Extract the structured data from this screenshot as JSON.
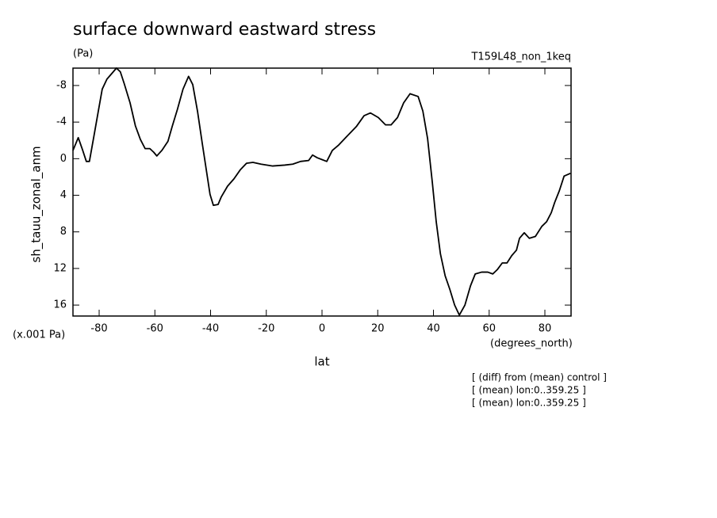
{
  "chart_data": {
    "type": "line",
    "title": "surface downward eastward stress",
    "subtitle": "(Pa)",
    "run_label": "T159L48_non_1keq",
    "y_axis_label": "sh_tauu_zonal_anm",
    "x_axis_label": "lat",
    "y_unit_label": "(x.001 Pa)",
    "x_unit_label": "(degrees_north)",
    "annotations": [
      "[ (diff) from (mean) control ]",
      "[ (mean) lon:0..359.25 ]",
      "[ (mean) lon:0..359.25 ]"
    ],
    "xlim": [
      -89.4,
      89.4
    ],
    "ylim": [
      17.2,
      -9.9
    ],
    "xticks": [
      -80,
      -60,
      -40,
      -20,
      0,
      20,
      40,
      60,
      80
    ],
    "yticks": [
      -8,
      -4,
      0,
      4,
      8,
      12,
      16
    ],
    "color": "#000000",
    "x": [
      -89.4,
      -87.5,
      -86,
      -84.6,
      -83.5,
      -81.8,
      -80.3,
      -78.9,
      -77.2,
      -75.2,
      -73.8,
      -72.4,
      -71,
      -68.9,
      -67,
      -65.2,
      -63.5,
      -61.8,
      -60.4,
      -59.3,
      -57.5,
      -55.3,
      -53.8,
      -51.9,
      -49.9,
      -47.9,
      -46.4,
      -44.7,
      -43,
      -41.3,
      -40.2,
      -39,
      -37.3,
      -36.2,
      -33.9,
      -31.6,
      -29.3,
      -27.1,
      -24.8,
      -21.9,
      -17.7,
      -13.4,
      -10.5,
      -7.7,
      -4.8,
      -3.4,
      -1.7,
      0,
      1.7,
      3.7,
      6,
      8.8,
      12.3,
      15.1,
      17.4,
      20.2,
      22.8,
      24.8,
      27.1,
      29.3,
      31.6,
      34.5,
      36.2,
      37.9,
      39.6,
      41,
      42.5,
      44.2,
      45.9,
      47.6,
      49.3,
      51.3,
      53.3,
      55,
      57.3,
      59.5,
      61.3,
      63,
      64.7,
      66.4,
      68.1,
      69.8,
      70.9,
      72.6,
      74.4,
      76.6,
      78.9,
      80.6,
      82.3,
      83.5,
      85.2,
      86.9,
      89.2
    ],
    "values": [
      -0.9,
      -2.3,
      -1.0,
      0.3,
      0.3,
      -2.6,
      -5.2,
      -7.6,
      -8.7,
      -9.4,
      -9.9,
      -9.5,
      -8.2,
      -6.1,
      -3.6,
      -2.1,
      -1.1,
      -1.1,
      -0.7,
      -0.3,
      -0.9,
      -1.9,
      -3.5,
      -5.4,
      -7.6,
      -9.0,
      -8.1,
      -5.2,
      -1.7,
      1.7,
      3.9,
      5.1,
      5.0,
      4.2,
      3.0,
      2.2,
      1.2,
      0.5,
      0.4,
      0.6,
      0.8,
      0.7,
      0.6,
      0.3,
      0.2,
      -0.4,
      -0.1,
      0.1,
      0.3,
      -0.9,
      -1.5,
      -2.4,
      -3.5,
      -4.7,
      -5.0,
      -4.5,
      -3.7,
      -3.7,
      -4.5,
      -6.1,
      -7.1,
      -6.8,
      -5.2,
      -2.2,
      2.6,
      6.9,
      10.4,
      12.8,
      14.3,
      16.0,
      17.1,
      16.0,
      13.9,
      12.6,
      12.4,
      12.4,
      12.6,
      12.1,
      11.4,
      11.4,
      10.6,
      10.0,
      8.7,
      8.1,
      8.7,
      8.5,
      7.4,
      6.9,
      5.9,
      4.8,
      3.5,
      1.9,
      1.6
    ]
  }
}
